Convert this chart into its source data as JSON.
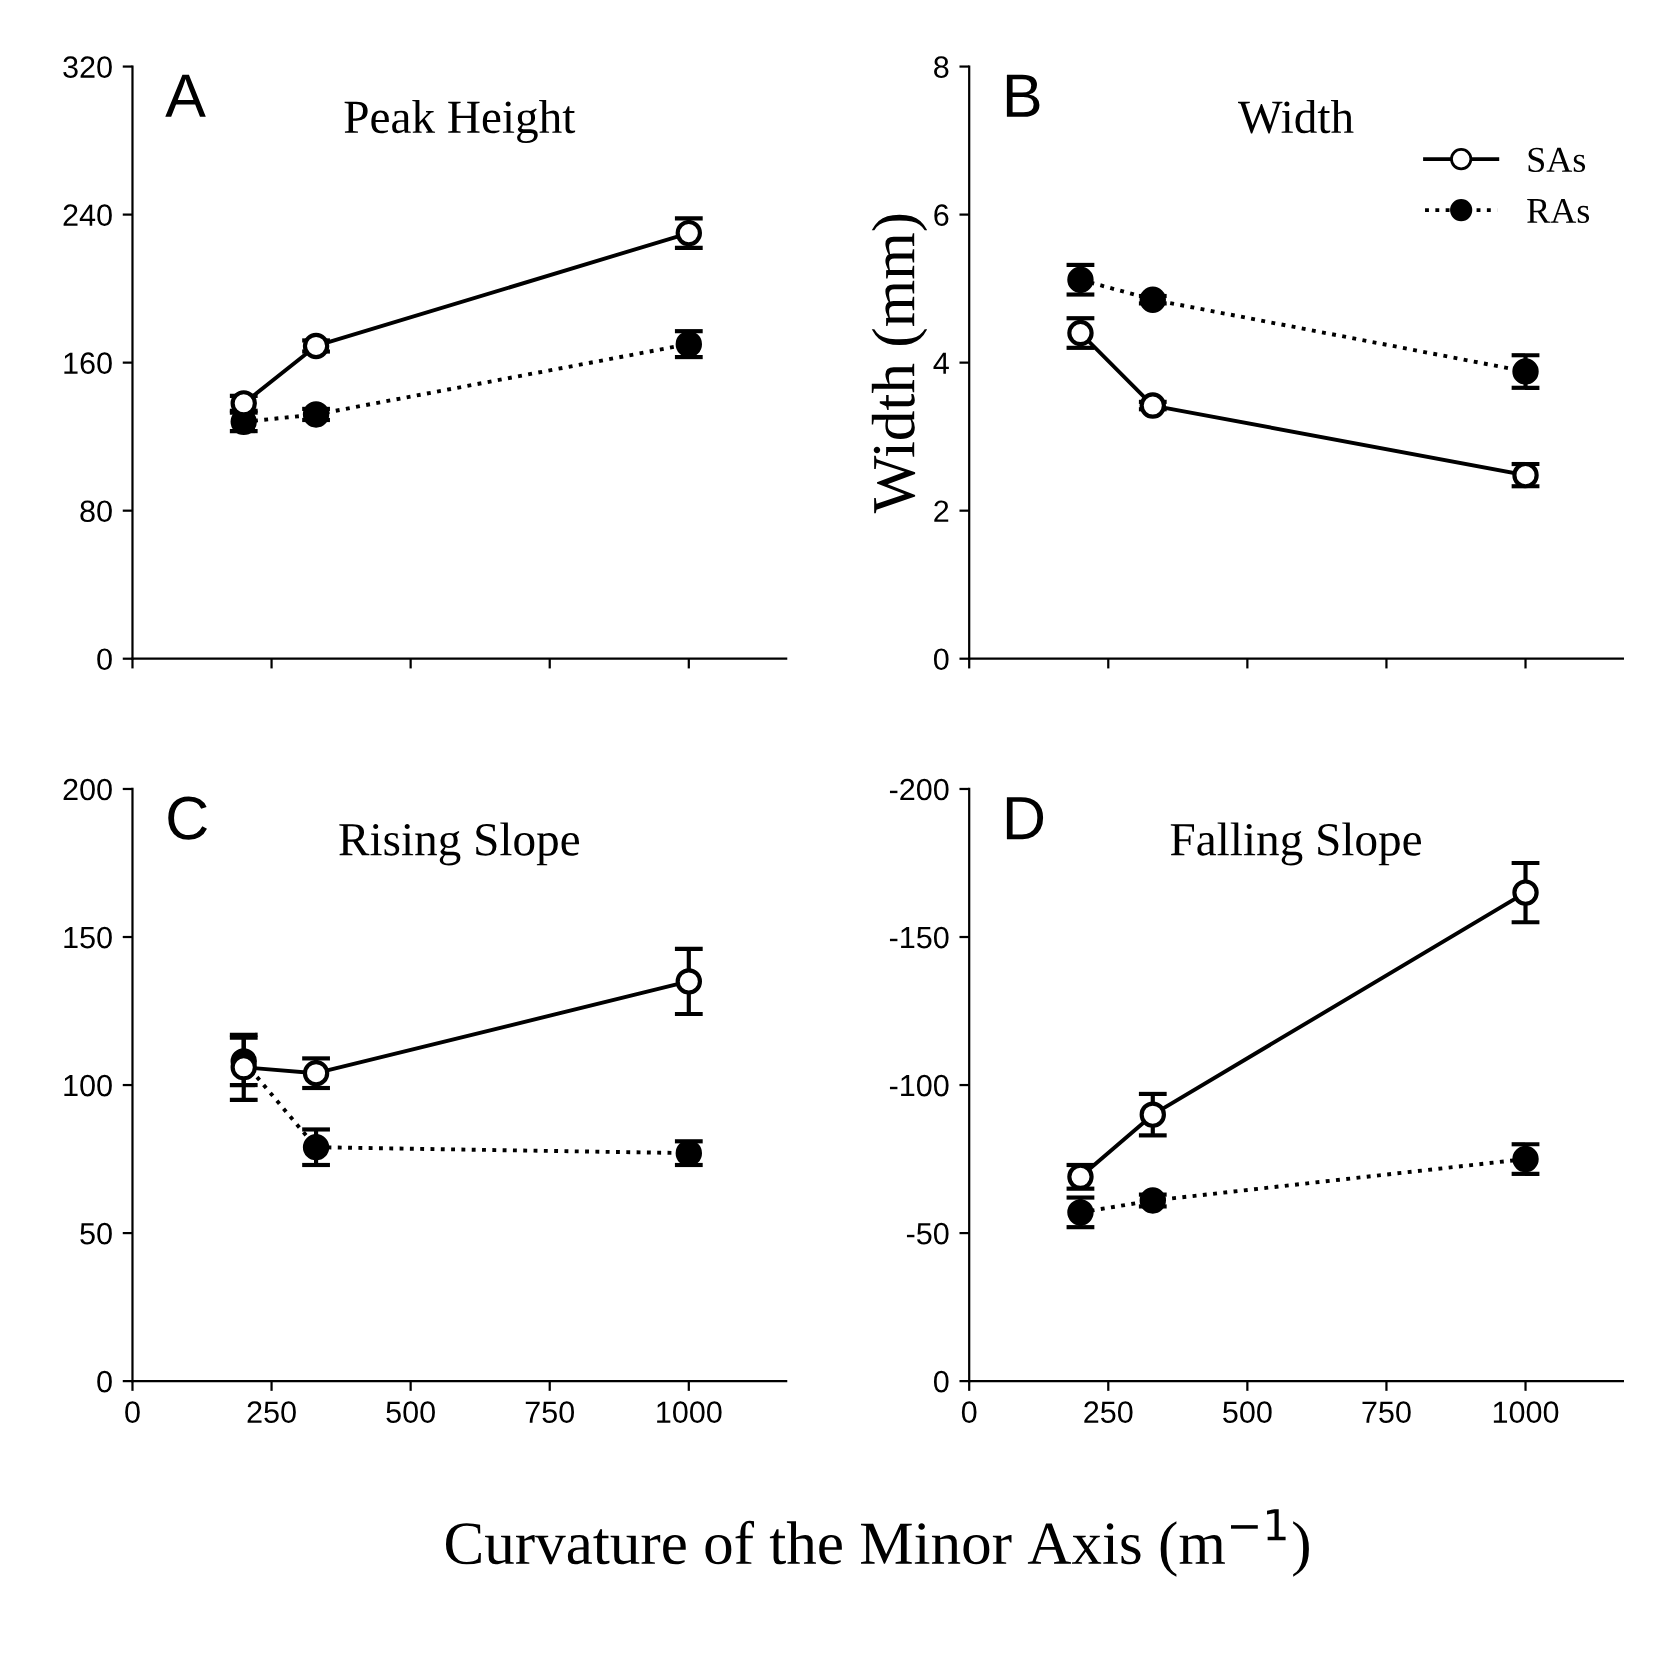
{
  "chart_data": [
    {
      "type": "line",
      "title": "Peak Height",
      "annotations": [
        "A"
      ],
      "x": [
        200,
        330,
        1000
      ],
      "xlim": [
        0,
        1175
      ],
      "xticks": [
        0,
        250,
        500,
        750,
        1000
      ],
      "tick_labels": "y",
      "ylim": [
        0,
        320
      ],
      "yticks": [
        0,
        80,
        160,
        240,
        320
      ],
      "grid": false,
      "legend": false,
      "marker": "circle",
      "series": [
        {
          "color": "#000000",
          "line_style": "solid",
          "values": [
            138,
            169,
            230
          ],
          "errors": [
            4,
            3,
            8
          ]
        },
        {
          "color": "#000000",
          "line_style": "dotted",
          "values": [
            128,
            132,
            170
          ],
          "errors": [
            5,
            3,
            7
          ]
        }
      ]
    },
    {
      "type": "line",
      "title": "Width",
      "ylabel": "Width (mm)",
      "annotations": [
        "B"
      ],
      "x": [
        200,
        330,
        1000
      ],
      "xlim": [
        0,
        1175
      ],
      "xticks": [
        0,
        250,
        500,
        750,
        1000
      ],
      "tick_labels": "y",
      "ylim": [
        0,
        8
      ],
      "yticks": [
        0,
        2,
        4,
        6,
        8
      ],
      "grid": false,
      "legend": "top right",
      "marker": "circle",
      "series": [
        {
          "name": "SAs",
          "color": "#000000",
          "line_style": "solid",
          "values": [
            4.4,
            3.42,
            2.48
          ],
          "errors": [
            0.2,
            0.05,
            0.15
          ]
        },
        {
          "name": "RAs",
          "color": "#000000",
          "line_style": "dotted",
          "values": [
            5.12,
            4.85,
            3.88
          ],
          "errors": [
            0.2,
            0.05,
            0.22
          ]
        }
      ]
    },
    {
      "type": "line",
      "title": "Rising Slope",
      "xlabel": "Curvature of the Minor Axis (m$^{−1}$)",
      "annotations": [
        "C"
      ],
      "x": [
        200,
        330,
        1000
      ],
      "xlim": [
        0,
        1175
      ],
      "xticks": [
        0,
        250,
        500,
        750,
        1000
      ],
      "ylim": [
        0,
        200
      ],
      "yticks": [
        0,
        50,
        100,
        150,
        200
      ],
      "grid": false,
      "legend": false,
      "marker": "circle",
      "series": [
        {
          "color": "#000000",
          "line_style": "solid",
          "values": [
            106,
            104,
            135
          ],
          "errors": [
            11,
            5,
            11
          ]
        },
        {
          "color": "#000000",
          "line_style": "dotted",
          "values": [
            108,
            79,
            77
          ],
          "errors": [
            8,
            6,
            4
          ]
        }
      ]
    },
    {
      "type": "line",
      "title": "Falling Slope",
      "annotations": [
        "D"
      ],
      "x": [
        200,
        330,
        1000
      ],
      "xlim": [
        0,
        1175
      ],
      "xticks": [
        0,
        250,
        500,
        750,
        1000
      ],
      "ylim": [
        0,
        -200
      ],
      "yticks": [
        0,
        {
          "value": -50,
          "label": "-50"
        },
        {
          "value": -100,
          "label": "-100"
        },
        {
          "value": -150,
          "label": "-150"
        },
        {
          "value": -200,
          "label": "-200"
        }
      ],
      "grid": false,
      "legend": false,
      "marker": "circle",
      "series": [
        {
          "color": "#000000",
          "line_style": "solid",
          "values": [
            -69,
            -90,
            -165
          ],
          "errors": [
            4,
            7,
            10
          ]
        },
        {
          "color": "#000000",
          "line_style": "dotted",
          "values": [
            -57,
            -61,
            -75
          ],
          "errors": [
            5,
            2,
            5
          ]
        }
      ]
    }
  ]
}
